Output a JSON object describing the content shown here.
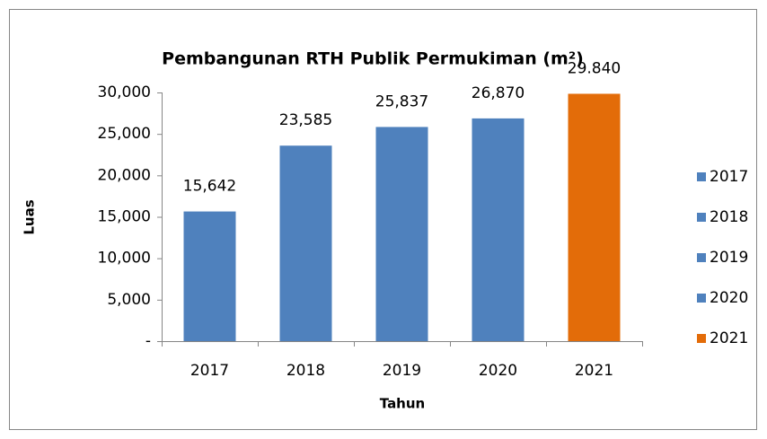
{
  "chart_data": {
    "type": "bar",
    "title": "Pembangunan RTH Publik Permukiman (m²)",
    "x_label": "Tahun",
    "y_label": "Luas",
    "categories": [
      "2017",
      "2018",
      "2019",
      "2020",
      "2021"
    ],
    "values": [
      15642,
      23585,
      25837,
      26870,
      29840
    ],
    "value_labels": [
      "15,642",
      "23,585",
      "25,837",
      "26,870",
      "29.840"
    ],
    "colors": [
      "#4f81bd",
      "#4f81bd",
      "#4f81bd",
      "#4f81bd",
      "#e36c09"
    ],
    "ylim": [
      0,
      30000
    ],
    "yticks": [
      {
        "value": 0,
        "label": "-"
      },
      {
        "value": 5000,
        "label": "5,000"
      },
      {
        "value": 10000,
        "label": "10,000"
      },
      {
        "value": 15000,
        "label": "15,000"
      },
      {
        "value": 20000,
        "label": "20,000"
      },
      {
        "value": 25000,
        "label": "25,000"
      },
      {
        "value": 30000,
        "label": "30,000"
      }
    ],
    "grid": false,
    "legend": "right"
  }
}
